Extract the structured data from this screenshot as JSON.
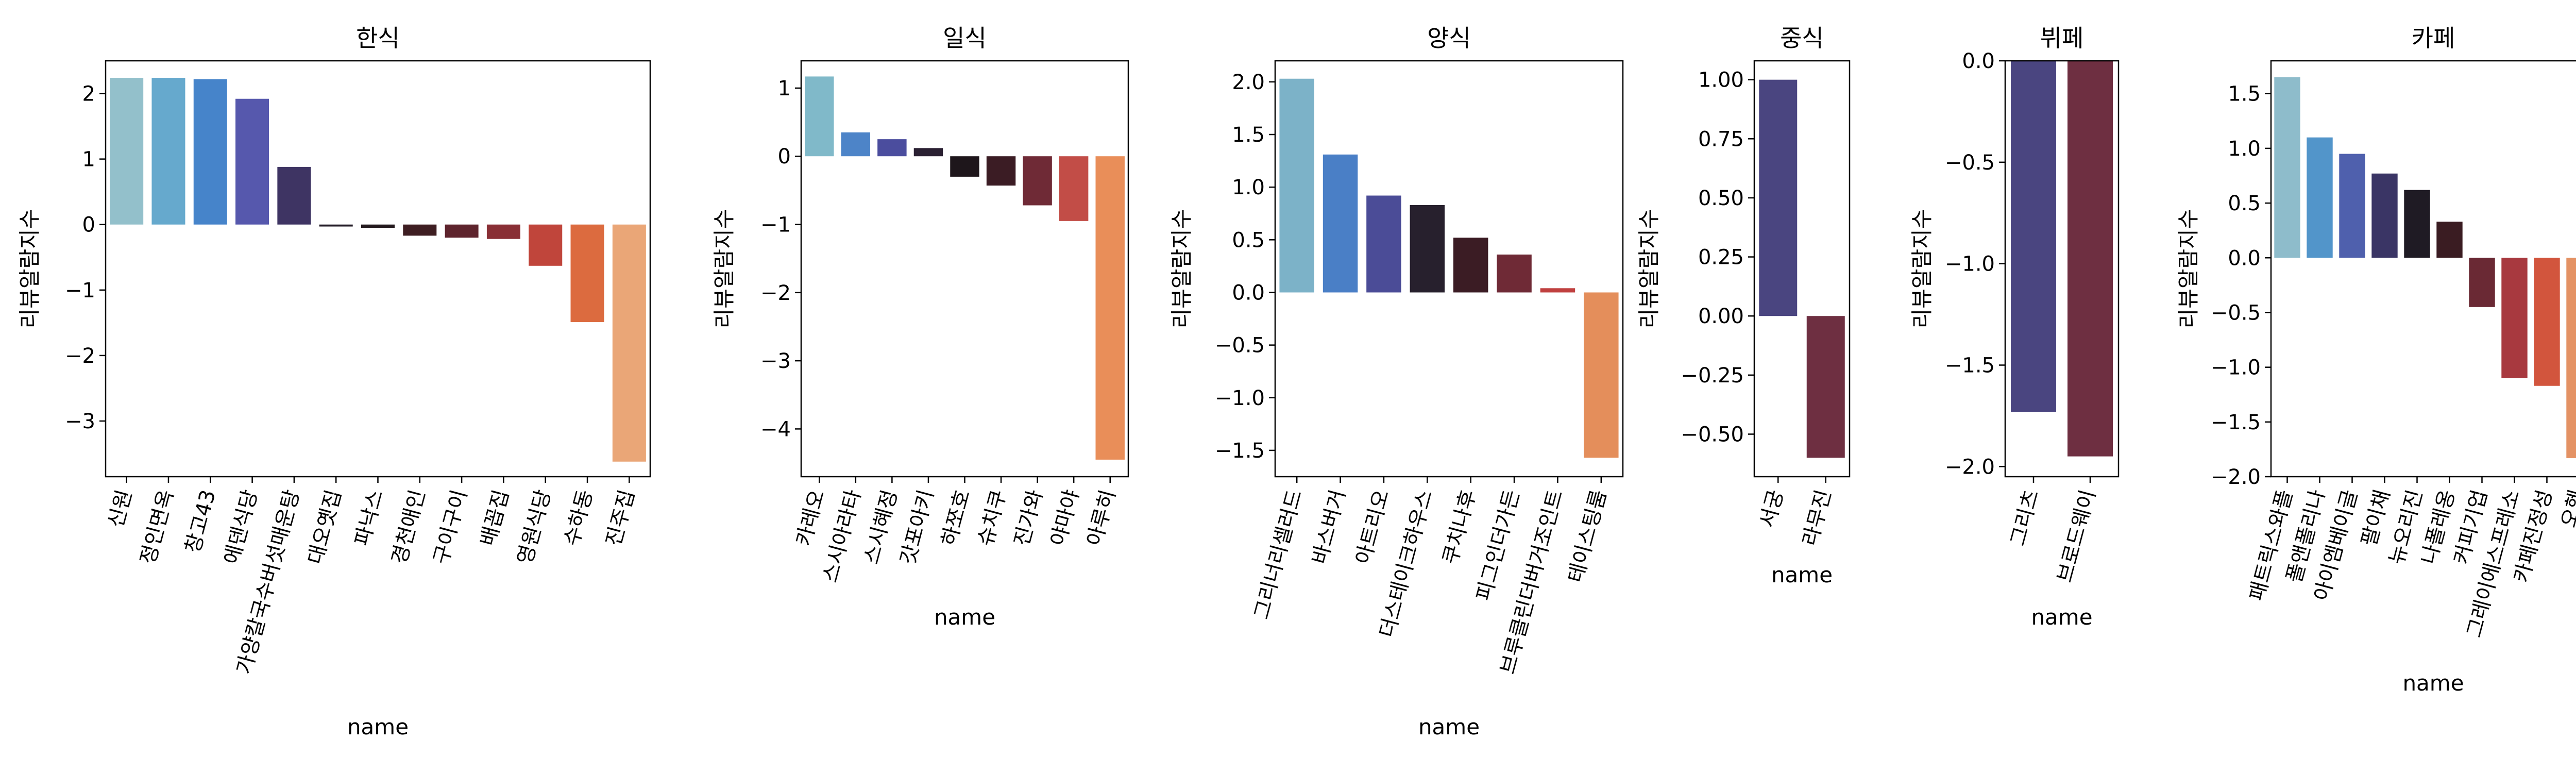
{
  "chart_data": [
    {
      "type": "bar",
      "title": "한식",
      "xlabel": "name",
      "ylabel": "리뷰알람지수",
      "categories": [
        "신원",
        "정인면옥",
        "창고43",
        "에덴식당",
        "가양칼국수버섯매운탕",
        "대오옛집",
        "파낙스",
        "경천애인",
        "구이구이",
        "배꼽집",
        "영원식당",
        "수하동",
        "진주집"
      ],
      "values": [
        2.24,
        2.24,
        2.22,
        1.92,
        0.88,
        -0.03,
        -0.05,
        -0.17,
        -0.2,
        -0.22,
        -0.63,
        -1.49,
        -3.62
      ],
      "colors": [
        "#93c0cb",
        "#66a9cd",
        "#4684ca",
        "#5658ad",
        "#3e3463",
        "#231c27",
        "#241a1e",
        "#3e1e22",
        "#5e242d",
        "#892f35",
        "#c0453b",
        "#dc6b3f",
        "#eaa677"
      ],
      "ylim": [
        -3.85,
        2.5
      ],
      "yticks": [
        -3,
        -2,
        -1,
        0,
        1,
        2
      ],
      "ytick_labels": [
        "−3",
        "−2",
        "−1",
        "0",
        "1",
        "2"
      ]
    },
    {
      "type": "bar",
      "title": "일식",
      "xlabel": "name",
      "ylabel": "리뷰알람지수",
      "categories": [
        "카레오",
        "스시아라타",
        "스시혜정",
        "갓포아키",
        "하쪼호",
        "슈치쿠",
        "진가와",
        "야마야",
        "아루히"
      ],
      "values": [
        1.17,
        0.35,
        0.25,
        0.12,
        -0.3,
        -0.43,
        -0.72,
        -0.95,
        -4.45
      ],
      "colors": [
        "#80b9c9",
        "#4d84c8",
        "#4b4d9e",
        "#2a2032",
        "#1e161b",
        "#3b1c24",
        "#6f2a36",
        "#c24d47",
        "#e98e59"
      ],
      "ylim": [
        -4.7,
        1.4
      ],
      "yticks": [
        -4,
        -3,
        -2,
        -1,
        0,
        1
      ],
      "ytick_labels": [
        "−4",
        "−3",
        "−2",
        "−1",
        "0",
        "1"
      ]
    },
    {
      "type": "bar",
      "title": "양식",
      "xlabel": "name",
      "ylabel": "리뷰알람지수",
      "categories": [
        "그리너리셀러드",
        "바스버거",
        "아트리오",
        "더스테이크하우스",
        "쿠치나후",
        "피그인더가든",
        "브루클린더버거조인트",
        "테이스팅룸"
      ],
      "values": [
        2.03,
        1.31,
        0.92,
        0.83,
        0.52,
        0.36,
        0.04,
        -1.57
      ],
      "colors": [
        "#7cb2c8",
        "#4a7fc6",
        "#4b4c97",
        "#27202d",
        "#3b1c24",
        "#6f2a36",
        "#c0403f",
        "#e48e5b"
      ],
      "ylim": [
        -1.75,
        2.2
      ],
      "yticks": [
        -1.5,
        -1.0,
        -0.5,
        0.0,
        0.5,
        1.0,
        1.5,
        2.0
      ],
      "ytick_labels": [
        "−1.5",
        "−1.0",
        "−0.5",
        "0.0",
        "0.5",
        "1.0",
        "1.5",
        "2.0"
      ]
    },
    {
      "type": "bar",
      "title": "중식",
      "xlabel": "name",
      "ylabel": "리뷰알람지수",
      "categories": [
        "서궁",
        "라무진"
      ],
      "values": [
        1.0,
        -0.6
      ],
      "colors": [
        "#4a4580",
        "#6e2f41"
      ],
      "ylim": [
        -0.68,
        1.08
      ],
      "yticks": [
        -0.5,
        -0.25,
        0.0,
        0.25,
        0.5,
        0.75,
        1.0
      ],
      "ytick_labels": [
        "−0.50",
        "−0.25",
        "0.00",
        "0.25",
        "0.50",
        "0.75",
        "1.00"
      ]
    },
    {
      "type": "bar",
      "title": "뷔페",
      "xlabel": "name",
      "ylabel": "리뷰알람지수",
      "categories": [
        "그리츠",
        "브로드웨이"
      ],
      "values": [
        -1.73,
        -1.95
      ],
      "colors": [
        "#4a4580",
        "#6e2f41"
      ],
      "ylim": [
        -2.05,
        0.0
      ],
      "yticks": [
        -2.0,
        -1.5,
        -1.0,
        -0.5,
        0.0
      ],
      "ytick_labels": [
        "−2.0",
        "−1.5",
        "−1.0",
        "−0.5",
        "0.0"
      ]
    },
    {
      "type": "bar",
      "title": "카페",
      "xlabel": "name",
      "ylabel": "리뷰알람지수",
      "categories": [
        "패트릭스와플",
        "폴앤폴리나",
        "아이엠베이글",
        "팔이채",
        "뉴오리진",
        "나폴레옹",
        "커피기업",
        "그레이에스프레소",
        "카페진정성",
        "오헨"
      ],
      "values": [
        1.65,
        1.1,
        0.95,
        0.77,
        0.62,
        0.33,
        -0.45,
        -1.1,
        -1.17,
        -1.83
      ],
      "colors": [
        "#8ebccb",
        "#5295ca",
        "#4f60ad",
        "#3a3565",
        "#1f1b24",
        "#3a1c22",
        "#6a2934",
        "#a8393f",
        "#d2553d",
        "#e49264"
      ],
      "ylim": [
        -2.0,
        1.8
      ],
      "yticks": [
        -2.0,
        -1.5,
        -1.0,
        -0.5,
        0.0,
        0.5,
        1.0,
        1.5
      ],
      "ytick_labels": [
        "−2.0",
        "−1.5",
        "−1.0",
        "−0.5",
        "0.0",
        "0.5",
        "1.0",
        "1.5"
      ]
    }
  ]
}
